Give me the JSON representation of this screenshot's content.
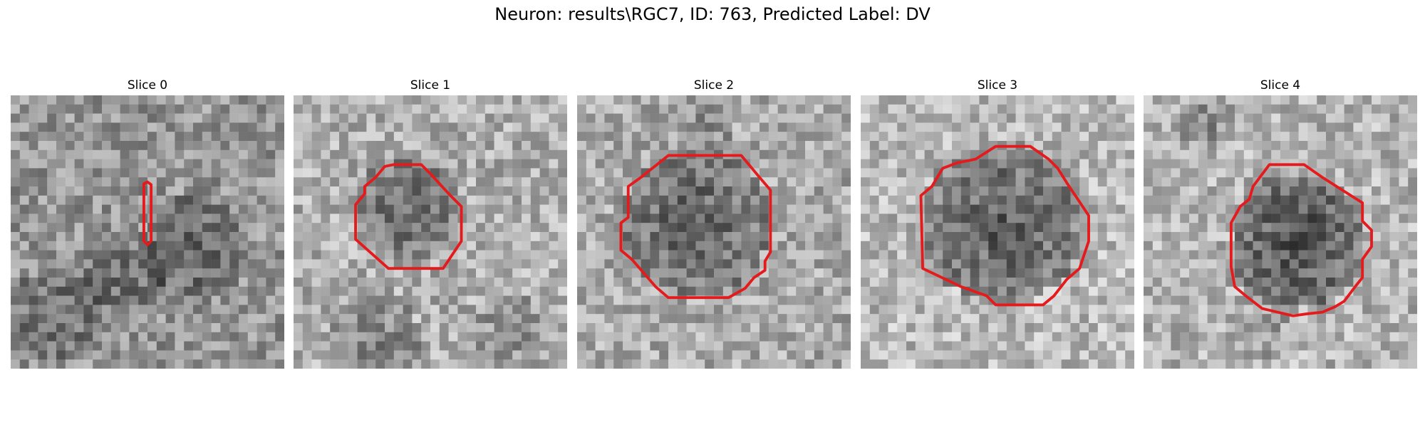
{
  "figure": {
    "suptitle": "Neuron: results\\RGC7, ID: 763, Predicted Label: DV",
    "outline_color": "#e41a1c"
  },
  "slices": [
    {
      "title": "Slice 0"
    },
    {
      "title": "Slice 1"
    },
    {
      "title": "Slice 2"
    },
    {
      "title": "Slice 3"
    },
    {
      "title": "Slice 4"
    }
  ]
}
